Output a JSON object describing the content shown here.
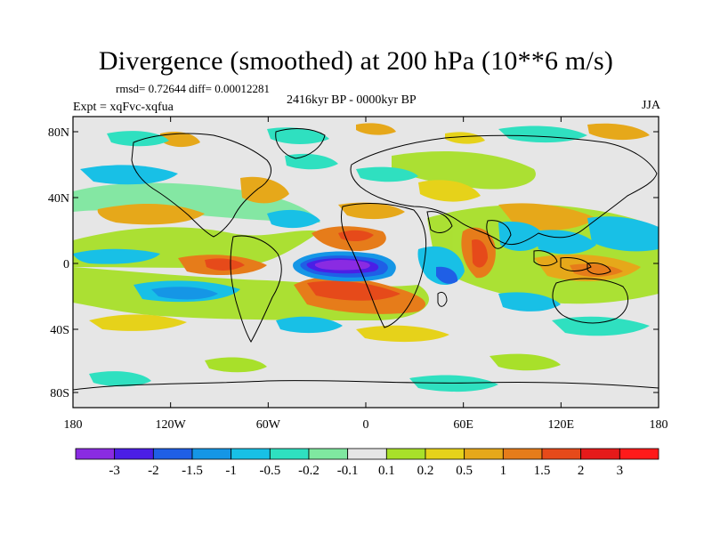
{
  "title": "Divergence (smoothed) at 200 hPa (10**6 m/s)",
  "stats": "rmsd= 0.72644 diff= 0.00012281",
  "experiment": "Expt = xqFvc-xqfua",
  "period": "2416kyr BP - 0000kyr BP",
  "season": "JJA",
  "lat_ticks": [
    "80N",
    "40N",
    "0",
    "40S",
    "80S"
  ],
  "lon_ticks": [
    "180",
    "120W",
    "60W",
    "0",
    "60E",
    "120E",
    "180"
  ],
  "colorbar": {
    "labels": [
      "-3",
      "-2",
      "-1.5",
      "-1",
      "-0.5",
      "-0.2",
      "-0.1",
      "0.1",
      "0.2",
      "0.5",
      "1",
      "1.5",
      "2",
      "3"
    ],
    "colors": [
      "#8a2be2",
      "#4b1ee6",
      "#1f5fe6",
      "#1596e6",
      "#18c0e6",
      "#2fe0c0",
      "#7fe8a0",
      "#e6e6e6",
      "#a8e02a",
      "#e6d21a",
      "#e6a81a",
      "#e67c1a",
      "#e64a1a",
      "#e61a1a",
      "#ff1a1a"
    ]
  }
}
